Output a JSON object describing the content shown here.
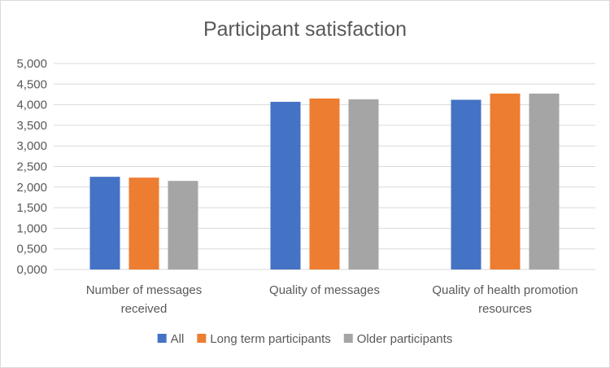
{
  "chart_data": {
    "type": "bar",
    "title": "Participant satisfaction",
    "xlabel": "",
    "ylabel": "",
    "ylim": [
      0,
      5
    ],
    "y_ticks": [
      "0,000",
      "0,500",
      "1,000",
      "1,500",
      "2,000",
      "2,500",
      "3,000",
      "3,500",
      "4,000",
      "4,500",
      "5,000"
    ],
    "categories": [
      [
        "Number of messages",
        "received"
      ],
      [
        "Quality of messages"
      ],
      [
        "Quality of health promotion",
        "resources"
      ]
    ],
    "series": [
      {
        "name": "All",
        "color": "#4472c4",
        "values": [
          2.25,
          4.07,
          4.12
        ]
      },
      {
        "name": "Long term participants",
        "color": "#ed7d31",
        "values": [
          2.23,
          4.15,
          4.27
        ]
      },
      {
        "name": "Older participants",
        "color": "#a5a5a5",
        "values": [
          2.15,
          4.13,
          4.27
        ]
      }
    ],
    "grid": true,
    "legend_position": "bottom"
  }
}
